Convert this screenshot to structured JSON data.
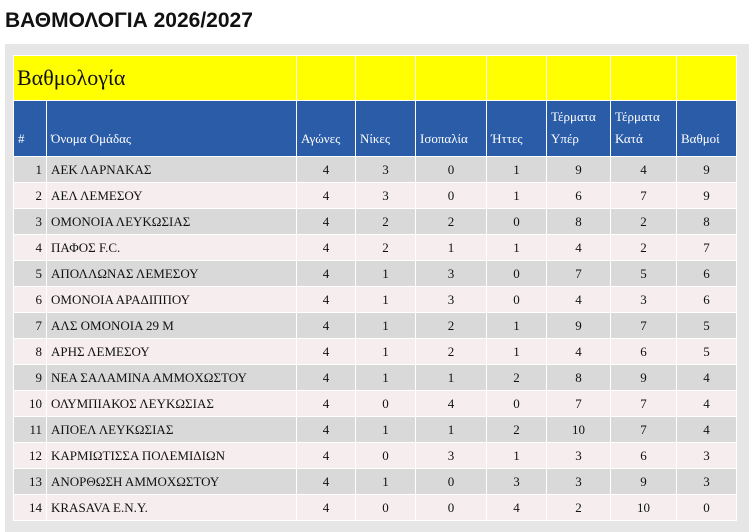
{
  "header": {
    "title": "ΒΑΘΜΟΛΟΓΙΑ 2026/2027"
  },
  "table": {
    "caption": "Βαθμολογία",
    "columns": [
      "#",
      "Όνομα Ομάδας",
      "Αγώνες",
      "Νίκες",
      "Ισοπαλία",
      "Ήττες",
      "Τέρματα Υπέρ",
      "Τέρματα Κατά",
      "Βαθμοί"
    ],
    "rows": [
      [
        1,
        "ΑΕΚ ΛΑΡΝΑΚΑΣ",
        4,
        3,
        0,
        1,
        9,
        4,
        9
      ],
      [
        2,
        "ΑΕΛ ΛΕΜΕΣΟΥ",
        4,
        3,
        0,
        1,
        6,
        7,
        9
      ],
      [
        3,
        "ΟΜΟΝΟΙΑ ΛΕΥΚΩΣΙΑΣ",
        4,
        2,
        2,
        0,
        8,
        2,
        8
      ],
      [
        4,
        "ΠΑΦΟΣ F.C.",
        4,
        2,
        1,
        1,
        4,
        2,
        7
      ],
      [
        5,
        "ΑΠΟΛΛΩΝΑΣ ΛΕΜΕΣΟΥ",
        4,
        1,
        3,
        0,
        7,
        5,
        6
      ],
      [
        6,
        "ΟΜΟΝΟΙΑ ΑΡΑΔΙΠΠΟΥ",
        4,
        1,
        3,
        0,
        4,
        3,
        6
      ],
      [
        7,
        "ΑΛΣ ΟΜΟΝΟΙΑ 29 Μ",
        4,
        1,
        2,
        1,
        9,
        7,
        5
      ],
      [
        8,
        "ΑΡΗΣ ΛΕΜΕΣΟΥ",
        4,
        1,
        2,
        1,
        4,
        6,
        5
      ],
      [
        9,
        "ΝΕΑ ΣΑΛΑΜΙΝΑ ΑΜΜΟΧΩΣΤΟΥ",
        4,
        1,
        1,
        2,
        8,
        9,
        4
      ],
      [
        10,
        "ΟΛΥΜΠΙΑΚΟΣ ΛΕΥΚΩΣΙΑΣ",
        4,
        0,
        4,
        0,
        7,
        7,
        4
      ],
      [
        11,
        "ΑΠΟΕΛ ΛΕΥΚΩΣΙΑΣ",
        4,
        1,
        1,
        2,
        10,
        7,
        4
      ],
      [
        12,
        "ΚΑΡΜΙΩΤΙΣΣΑ ΠΟΛΕΜΙΔΙΩΝ",
        4,
        0,
        3,
        1,
        3,
        6,
        3
      ],
      [
        13,
        "ΑΝΟΡΘΩΣΗ ΑΜΜΟΧΩΣΤΟΥ",
        4,
        1,
        0,
        3,
        3,
        9,
        3
      ],
      [
        14,
        "KRASAVA E.N.Y.",
        4,
        0,
        0,
        4,
        2,
        10,
        0
      ]
    ]
  }
}
